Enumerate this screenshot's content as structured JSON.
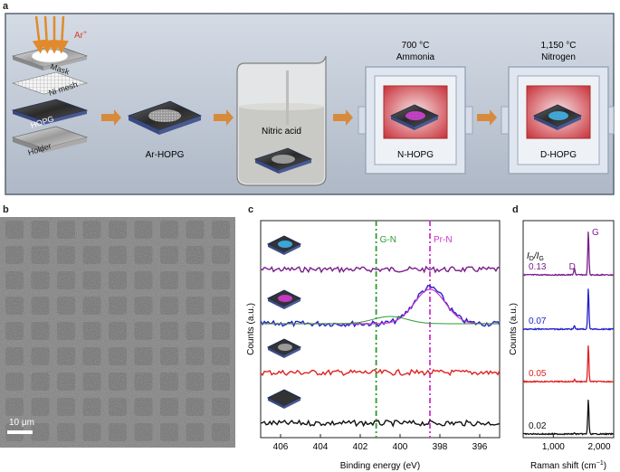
{
  "panels": {
    "a": "a",
    "b": "b",
    "c": "c",
    "d": "d"
  },
  "panel_a": {
    "ion_label": "Ar",
    "ion_sup": "+",
    "layers": [
      "Mask",
      "Ni mesh",
      "HOPG",
      "Holder"
    ],
    "arhopg_label": "Ar-HOPG",
    "beaker_label": "Nitric acid",
    "furnace1": {
      "temp": "700 °C",
      "gas": "Ammonia",
      "label": "N-HOPG"
    },
    "furnace2": {
      "temp": "1,150 °C",
      "gas": "Nitrogen",
      "label": "D-HOPG"
    }
  },
  "panel_b": {
    "scalebar": "10 μm"
  },
  "chart_c": {
    "type": "line",
    "xlabel": "Binding energy (eV)",
    "ylabel": "Counts (a.u.)",
    "xlim": [
      407,
      395
    ],
    "xticks": [
      406,
      404,
      402,
      400,
      398,
      396
    ],
    "vlines": [
      {
        "label": "G-N",
        "x": 401.2,
        "color": "#2e9a2e"
      },
      {
        "label": "Pr-N",
        "x": 398.5,
        "color": "#cc33cc"
      }
    ],
    "series": [
      {
        "sample": "D-HOPG",
        "color": "#7a1d8c"
      },
      {
        "sample": "N-HOPG",
        "color": "#2222cc",
        "peak_center": 398.5
      },
      {
        "sample": "Ar-HOPG",
        "color": "#dd2222"
      },
      {
        "sample": "HOPG",
        "color": "#111111"
      }
    ]
  },
  "chart_d": {
    "type": "line",
    "xlabel": "Raman shift (cm",
    "xlabel_sup": "−1",
    "xlabel_end": ")",
    "ylabel": "Counts (a.u.)",
    "xlim": [
      500,
      2000
    ],
    "xticks": [
      1000,
      2000
    ],
    "xtick_labels": [
      "1,000",
      "2,000"
    ],
    "ratio_label": "I",
    "ratio_sub1": "D",
    "ratio_mid": "/I",
    "ratio_sub2": "G",
    "peaks": {
      "D": "D",
      "G": "G",
      "D_pos": 1350,
      "G_pos": 1580
    },
    "series": [
      {
        "ratio": "0.13",
        "color": "#7a1d8c"
      },
      {
        "ratio": "0.07",
        "color": "#2222cc"
      },
      {
        "ratio": "0.05",
        "color": "#dd2222"
      },
      {
        "ratio": "0.02",
        "color": "#111111"
      }
    ]
  }
}
